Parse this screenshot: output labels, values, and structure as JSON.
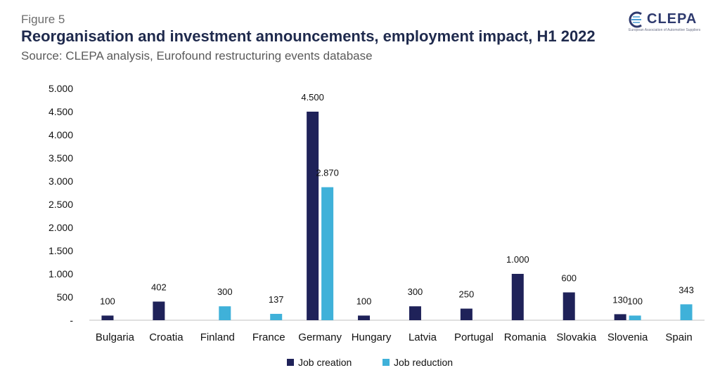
{
  "header": {
    "figure_label": "Figure 5",
    "title": "Reorganisation and investment announcements, employment impact, H1 2022",
    "subtitle": "Source: CLEPA analysis, Eurofound restructuring events database"
  },
  "logo": {
    "name": "CLEPA",
    "tagline": "European Association of Automotive Suppliers",
    "color": "#2e3a6e"
  },
  "chart_data": {
    "type": "bar",
    "categories": [
      "Bulgaria",
      "Croatia",
      "Finland",
      "France",
      "Germany",
      "Hungary",
      "Latvia",
      "Portugal",
      "Romania",
      "Slovakia",
      "Slovenia",
      "Spain"
    ],
    "series": [
      {
        "name": "Job creation",
        "color": "#1f2259",
        "values": [
          100,
          402,
          null,
          null,
          4500,
          100,
          300,
          250,
          1000,
          600,
          130,
          null
        ],
        "labels": [
          "100",
          "402",
          "",
          "",
          "4.500",
          "100",
          "300",
          "250",
          "1.000",
          "600",
          "130",
          ""
        ]
      },
      {
        "name": "Job reduction",
        "color": "#3fb1d9",
        "values": [
          null,
          null,
          300,
          137,
          2870,
          null,
          null,
          null,
          null,
          null,
          100,
          343
        ],
        "labels": [
          "",
          "",
          "300",
          "137",
          "2.870",
          "",
          "",
          "",
          "",
          "",
          "100",
          "343"
        ]
      }
    ],
    "ylim": [
      0,
      5000
    ],
    "yticks": [
      0,
      500,
      1000,
      1500,
      2000,
      2500,
      3000,
      3500,
      4000,
      4500,
      5000
    ],
    "ytick_labels": [
      "-",
      "500",
      "1.000",
      "1.500",
      "2.000",
      "2.500",
      "3.000",
      "3.500",
      "4.000",
      "4.500",
      "5.000"
    ],
    "grid": false,
    "legend": "bottom-center"
  }
}
